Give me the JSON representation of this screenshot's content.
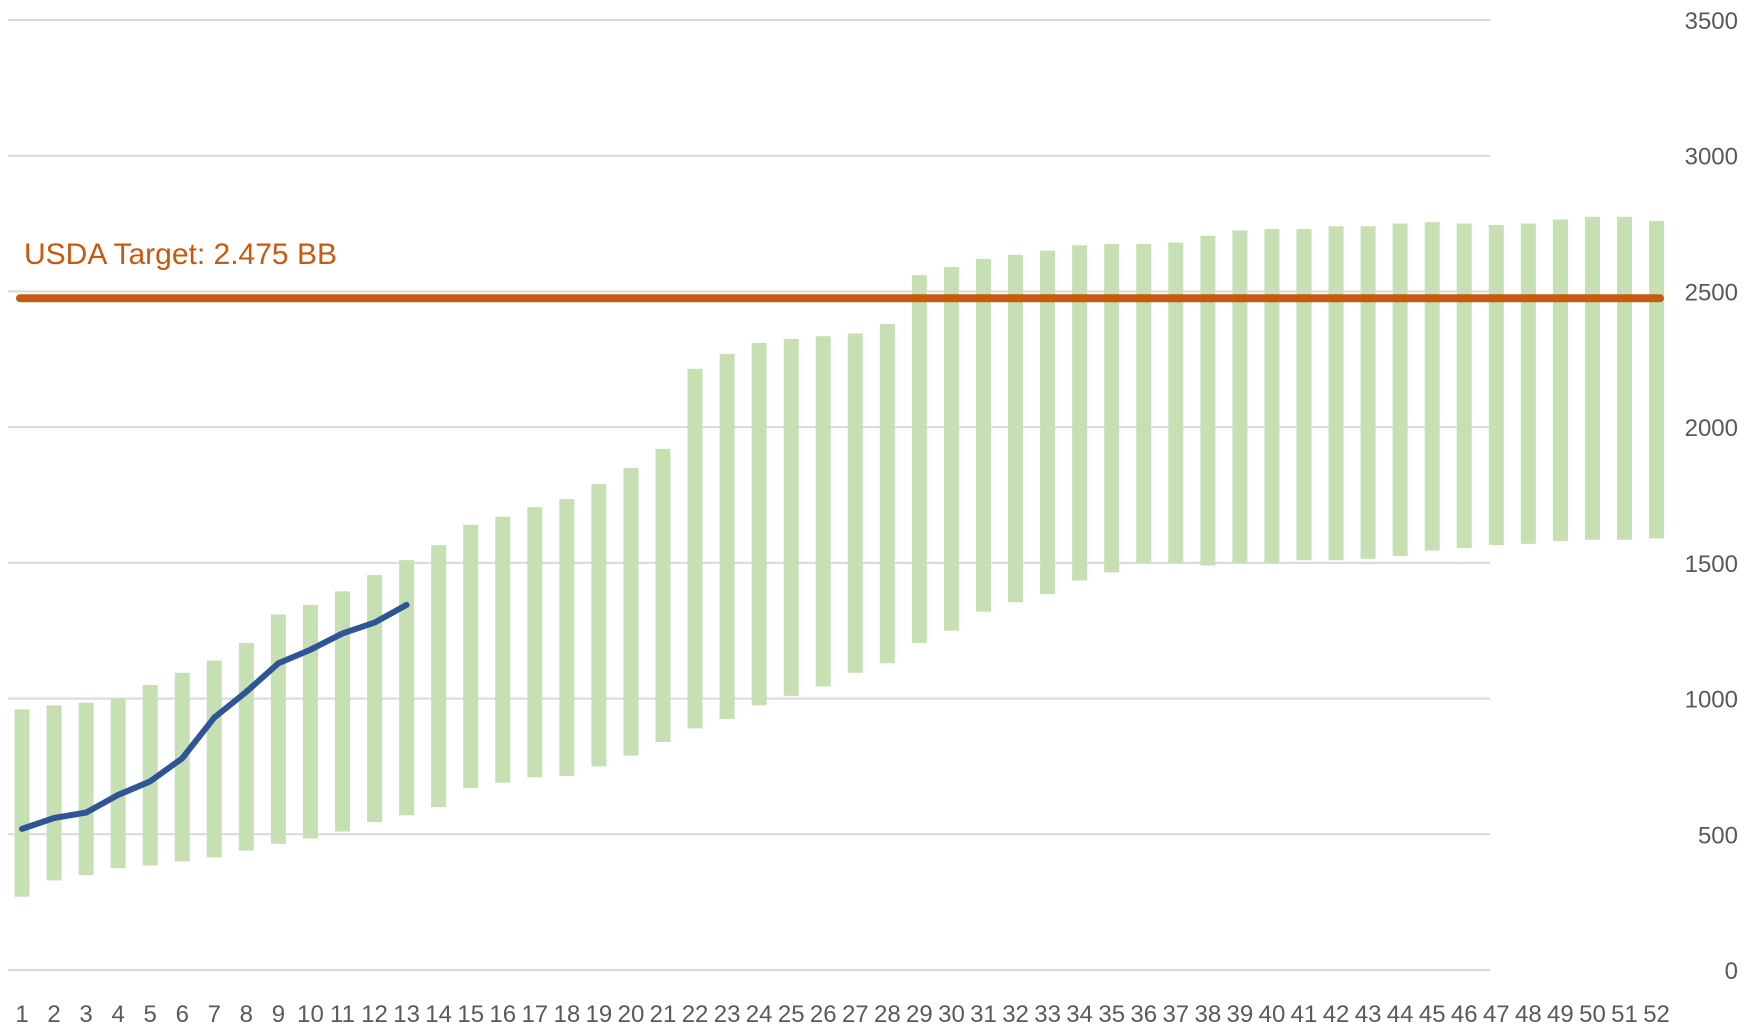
{
  "chart_data": {
    "type": "bar",
    "title": "",
    "xlabel": "",
    "ylabel": "",
    "ylim": [
      0,
      3500
    ],
    "yticks": [
      0,
      500,
      1000,
      1500,
      2000,
      2500,
      3000,
      3500
    ],
    "y_axis_side": "right",
    "grid": true,
    "legend": "none",
    "categories": [
      "1",
      "2",
      "3",
      "4",
      "5",
      "6",
      "7",
      "8",
      "9",
      "10",
      "11",
      "12",
      "13",
      "14",
      "15",
      "16",
      "17",
      "18",
      "19",
      "20",
      "21",
      "22",
      "23",
      "24",
      "25",
      "26",
      "27",
      "28",
      "29",
      "30",
      "31",
      "32",
      "33",
      "34",
      "35",
      "36",
      "37",
      "38",
      "39",
      "40",
      "41",
      "42",
      "43",
      "44",
      "45",
      "46",
      "47",
      "48",
      "49",
      "50",
      "51",
      "52"
    ],
    "range_low": [
      270,
      330,
      350,
      375,
      385,
      400,
      415,
      440,
      465,
      485,
      510,
      545,
      570,
      600,
      670,
      690,
      710,
      715,
      750,
      790,
      840,
      890,
      925,
      975,
      1010,
      1045,
      1095,
      1130,
      1205,
      1250,
      1320,
      1355,
      1385,
      1435,
      1465,
      1500,
      1500,
      1490,
      1500,
      1500,
      1510,
      1510,
      1515,
      1525,
      1545,
      1555,
      1565,
      1570,
      1580,
      1585,
      1585,
      1590
    ],
    "range_high": [
      960,
      975,
      985,
      1000,
      1050,
      1095,
      1140,
      1205,
      1310,
      1345,
      1395,
      1455,
      1510,
      1565,
      1640,
      1670,
      1705,
      1735,
      1790,
      1850,
      1920,
      2215,
      2270,
      2310,
      2325,
      2335,
      2345,
      2380,
      2560,
      2590,
      2620,
      2635,
      2650,
      2670,
      2675,
      2675,
      2680,
      2705,
      2725,
      2730,
      2730,
      2740,
      2740,
      2750,
      2755,
      2750,
      2745,
      2750,
      2765,
      2775,
      2775,
      2760
    ],
    "line_x": [
      1,
      2,
      3,
      4,
      5,
      6,
      7,
      8,
      9,
      10,
      11,
      12,
      13
    ],
    "line_values": [
      520,
      560,
      580,
      645,
      695,
      780,
      930,
      1025,
      1130,
      1180,
      1240,
      1280,
      1345
    ],
    "target_value": 2475,
    "target_label": "USDA Target: 2.475 BB",
    "colors": {
      "range_bar": "#c6e0b4",
      "line": "#2f5597",
      "target": "#c55a11",
      "grid": "#d9d9d9",
      "tick_text": "#595959"
    }
  }
}
